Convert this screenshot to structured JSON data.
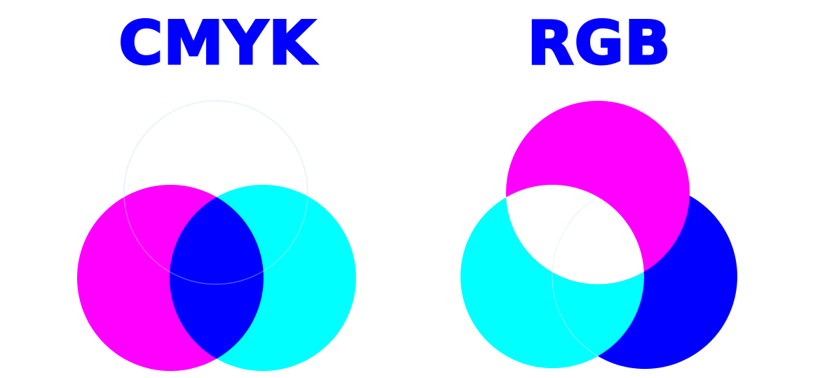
{
  "cmyk": {
    "title": "CMYK",
    "colors": {
      "magenta": "#ff00ff",
      "cyan": "#00ffff",
      "overlap": "#0000ff",
      "outline": "#e8f4ff"
    }
  },
  "rgb": {
    "title": "RGB",
    "colors": {
      "magenta": "#ff00ff",
      "cyan": "#00ffff",
      "blue": "#0000ff",
      "center": "#ffffff"
    }
  },
  "title_color": "#0000ff"
}
